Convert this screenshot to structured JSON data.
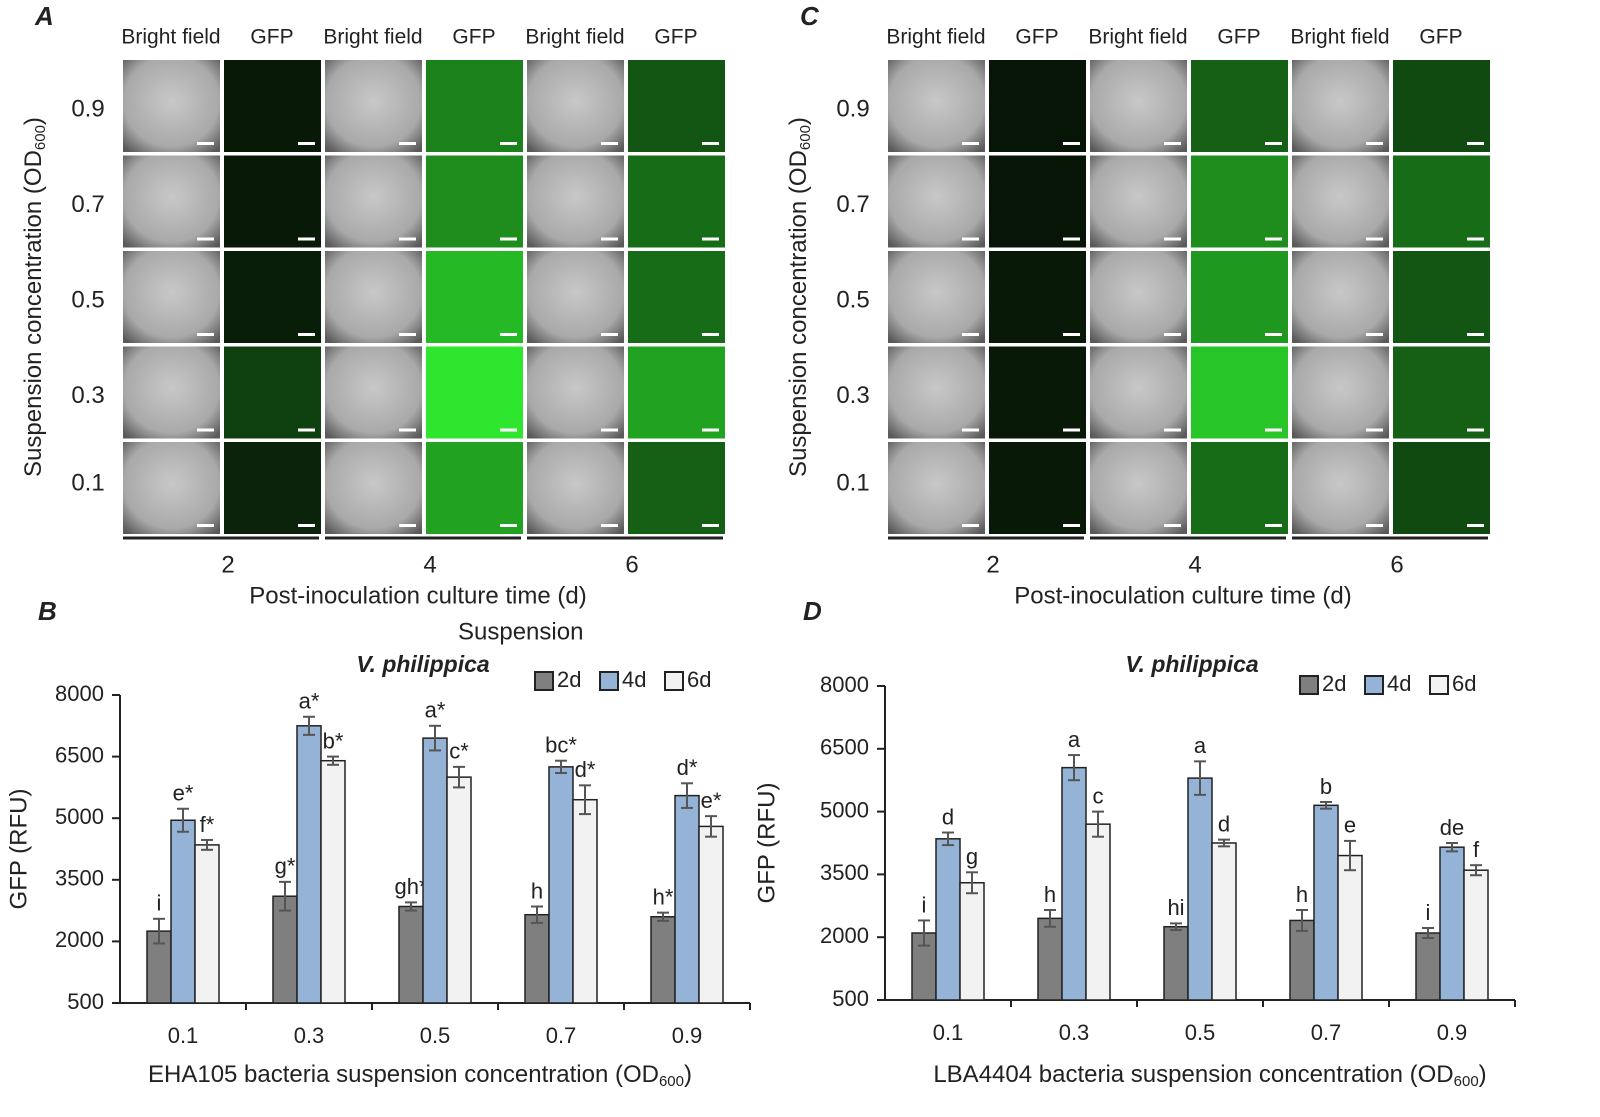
{
  "image_panels": [
    {
      "letter": "A",
      "column_headers": [
        "Bright field",
        "GFP",
        "Bright field",
        "GFP",
        "Bright field",
        "GFP"
      ],
      "row_labels": [
        "0.9",
        "0.7",
        "0.5",
        "0.3",
        "0.1"
      ],
      "ylabel": "Suspension concentration (OD",
      "ylabel_sub": "600",
      "ylabel_end": ")",
      "group_labels": [
        "2",
        "4",
        "6"
      ],
      "xlabel": "Post-inoculation culture time (d)"
    },
    {
      "letter": "C",
      "column_headers": [
        "Bright field",
        "GFP",
        "Bright field",
        "GFP",
        "Bright field",
        "GFP"
      ],
      "row_labels": [
        "0.9",
        "0.7",
        "0.5",
        "0.3",
        "0.1"
      ],
      "ylabel": "Suspension concentration (OD",
      "ylabel_sub": "600",
      "ylabel_end": ")",
      "group_labels": [
        "2",
        "4",
        "6"
      ],
      "xlabel": "Post-inoculation culture time (d)"
    }
  ],
  "stray_text": "Suspension",
  "chart_data": [
    {
      "type": "bar",
      "letter": "B",
      "title": "V. philippica",
      "categories": [
        "0.1",
        "0.3",
        "0.5",
        "0.7",
        "0.9"
      ],
      "series": [
        {
          "name": "2d",
          "color": "#7f7f7f",
          "values": [
            2250,
            3100,
            2850,
            2650,
            2600
          ],
          "errors": [
            300,
            350,
            100,
            200,
            100
          ],
          "value_labels": [
            "i",
            "g*",
            "gh*",
            "h",
            "h*"
          ]
        },
        {
          "name": "4d",
          "color": "#95b3d7",
          "values": [
            4950,
            7250,
            6950,
            6250,
            5550
          ],
          "errors": [
            280,
            220,
            300,
            150,
            300
          ],
          "value_labels": [
            "e*",
            "a*",
            "a*",
            "bc*",
            "d*"
          ]
        },
        {
          "name": "6d",
          "color": "#f2f2f2",
          "values": [
            4350,
            6400,
            6000,
            5450,
            4800
          ],
          "errors": [
            120,
            100,
            250,
            350,
            250
          ],
          "value_labels": [
            "f*",
            "b*",
            "c*",
            "d*",
            "e*"
          ]
        }
      ],
      "ylim": [
        500,
        8000
      ],
      "yticks": [
        500,
        2000,
        3500,
        5000,
        6500,
        8000
      ],
      "ylabel": "GFP (RFU)",
      "xlabel": "EHA105 bacteria suspension concentration (OD",
      "xlabel_sub": "600",
      "xlabel_end": ")",
      "legend": "top-right"
    },
    {
      "type": "bar",
      "letter": "D",
      "title": "V. philippica",
      "categories": [
        "0.1",
        "0.3",
        "0.5",
        "0.7",
        "0.9"
      ],
      "series": [
        {
          "name": "2d",
          "color": "#7f7f7f",
          "values": [
            2100,
            2450,
            2250,
            2400,
            2100
          ],
          "errors": [
            300,
            200,
            80,
            250,
            120
          ],
          "value_labels": [
            "i",
            "h",
            "hi",
            "h",
            "i"
          ]
        },
        {
          "name": "4d",
          "color": "#95b3d7",
          "values": [
            4350,
            6050,
            5800,
            5150,
            4150
          ],
          "errors": [
            150,
            300,
            400,
            80,
            100
          ],
          "value_labels": [
            "d",
            "a",
            "a",
            "b",
            "de"
          ]
        },
        {
          "name": "6d",
          "color": "#f2f2f2",
          "values": [
            3300,
            4700,
            4250,
            3950,
            3600
          ],
          "errors": [
            250,
            300,
            80,
            350,
            120
          ],
          "value_labels": [
            "g",
            "c",
            "d",
            "e",
            "f"
          ]
        }
      ],
      "ylim": [
        500,
        8000
      ],
      "yticks": [
        500,
        2000,
        3500,
        5000,
        6500,
        8000
      ],
      "ylabel": "GFP (RFU)",
      "xlabel": "LBA4404 bacteria suspension concentration (OD",
      "xlabel_sub": "600",
      "xlabel_end": ")",
      "legend": "top-right"
    }
  ]
}
